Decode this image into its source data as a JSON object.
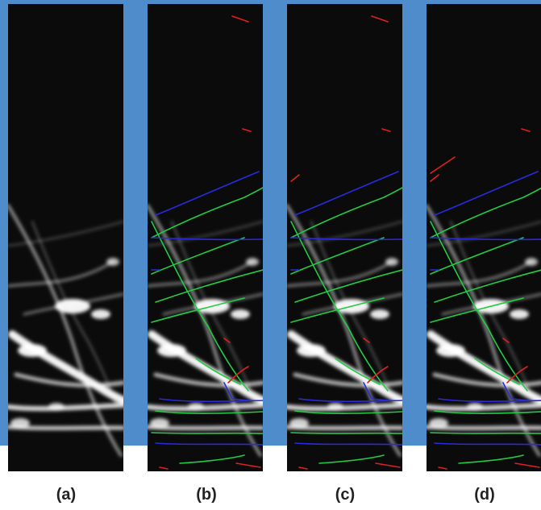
{
  "panels": [
    {
      "label": "(a)",
      "overlay": false
    },
    {
      "label": "(b)",
      "overlay": true
    },
    {
      "label": "(c)",
      "overlay": true
    },
    {
      "label": "(d)",
      "overlay": true
    }
  ],
  "colors": {
    "background_accent": "#4f8ccc",
    "image_background": "#0b0b0b",
    "filament": "#ffffff",
    "trace_green": "#22cc44",
    "trace_blue": "#2a2ae0",
    "trace_red": "#e02020"
  }
}
